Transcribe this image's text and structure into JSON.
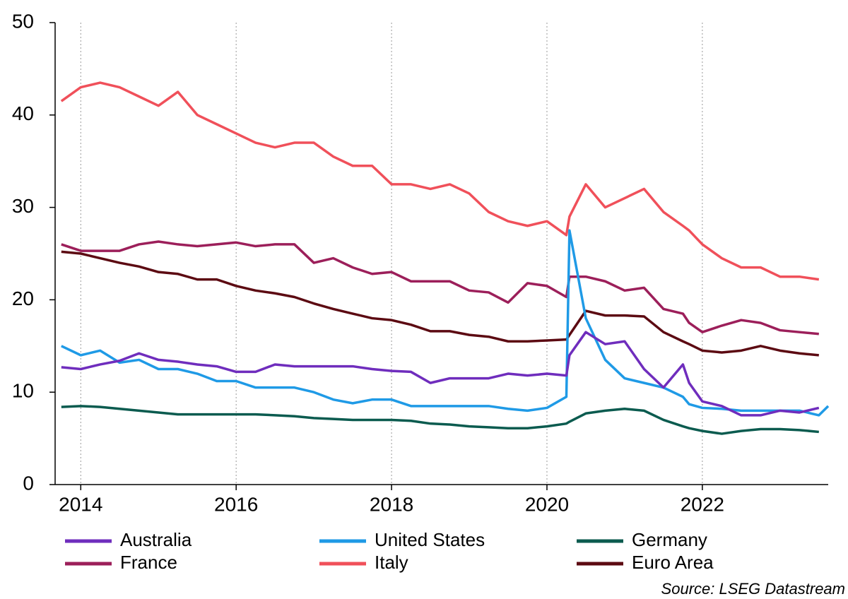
{
  "chart_data": {
    "type": "line",
    "x": [
      2013.75,
      2014,
      2014.25,
      2014.5,
      2014.75,
      2015,
      2015.25,
      2015.5,
      2015.75,
      2016,
      2016.25,
      2016.5,
      2016.75,
      2017,
      2017.25,
      2017.5,
      2017.75,
      2018,
      2018.25,
      2018.5,
      2018.75,
      2019,
      2019.25,
      2019.5,
      2019.75,
      2020,
      2020.25,
      2020.29,
      2020.5,
      2020.75,
      2021,
      2021.25,
      2021.5,
      2021.75,
      2021.83,
      2022,
      2022.25,
      2022.5,
      2022.75,
      2023,
      2023.25,
      2023.5,
      2023.62
    ],
    "series": [
      {
        "name": "Australia",
        "color": "#6f2dbd",
        "values": [
          12.7,
          12.5,
          13,
          13.4,
          14.2,
          13.5,
          13.3,
          13,
          12.8,
          12.2,
          12.2,
          13,
          12.8,
          12.8,
          12.8,
          12.8,
          12.5,
          12.3,
          12.2,
          11,
          11.5,
          11.5,
          11.5,
          12,
          11.8,
          12,
          11.8,
          14,
          16.5,
          15.2,
          15.5,
          12.5,
          10.5,
          13,
          11,
          9,
          8.5,
          7.5,
          7.5,
          8,
          7.8,
          8.3,
          null
        ]
      },
      {
        "name": "United States",
        "color": "#1f9ae6",
        "values": [
          15,
          14,
          14.5,
          13.2,
          13.5,
          12.5,
          12.5,
          12,
          11.2,
          11.2,
          10.5,
          10.5,
          10.5,
          10,
          9.2,
          8.8,
          9.2,
          9.2,
          8.5,
          8.5,
          8.5,
          8.5,
          8.5,
          8.2,
          8,
          8.3,
          9.5,
          27.5,
          18,
          13.5,
          11.5,
          11,
          10.5,
          9.5,
          8.7,
          8.3,
          8.2,
          8,
          8,
          8,
          8,
          7.5,
          8.5
        ]
      },
      {
        "name": "Germany",
        "color": "#0b5b4f",
        "values": [
          8.4,
          8.5,
          8.4,
          8.2,
          8,
          7.8,
          7.6,
          7.6,
          7.6,
          7.6,
          7.6,
          7.5,
          7.4,
          7.2,
          7.1,
          7,
          7,
          7,
          6.9,
          6.6,
          6.5,
          6.3,
          6.2,
          6.1,
          6.1,
          6.3,
          6.6,
          6.8,
          7.7,
          8,
          8.2,
          8,
          7,
          6.3,
          6.1,
          5.8,
          5.5,
          5.8,
          6,
          6,
          5.9,
          5.7,
          null
        ]
      },
      {
        "name": "France",
        "color": "#9c1f5a",
        "values": [
          26,
          25.3,
          25.3,
          25.3,
          26,
          26.3,
          26,
          25.8,
          26,
          26.2,
          25.8,
          26,
          26,
          24,
          24.5,
          23.5,
          22.8,
          23,
          22,
          22,
          22,
          21,
          20.8,
          19.7,
          21.8,
          21.5,
          20.3,
          22.5,
          22.5,
          22,
          21,
          21.3,
          19,
          18.5,
          17.5,
          16.5,
          17.2,
          17.8,
          17.5,
          16.7,
          16.5,
          16.3,
          null
        ]
      },
      {
        "name": "Italy",
        "color": "#f0505a",
        "values": [
          41.5,
          43,
          43.5,
          43,
          42,
          41,
          42.5,
          40,
          39,
          38,
          37,
          36.5,
          37,
          37,
          35.5,
          34.5,
          34.5,
          32.5,
          32.5,
          32,
          32.5,
          31.5,
          29.5,
          28.5,
          28,
          28.5,
          27,
          29,
          32.5,
          30,
          31,
          32,
          29.5,
          28,
          27.5,
          26,
          24.5,
          23.5,
          23.5,
          22.5,
          22.5,
          22.2,
          null
        ]
      },
      {
        "name": "Euro Area",
        "color": "#5c0a12",
        "values": [
          25.2,
          25,
          24.5,
          24,
          23.6,
          23,
          22.8,
          22.2,
          22.2,
          21.5,
          21,
          20.7,
          20.3,
          19.6,
          19,
          18.5,
          18,
          17.8,
          17.3,
          16.6,
          16.6,
          16.2,
          16,
          15.5,
          15.5,
          15.6,
          15.7,
          16.2,
          18.8,
          18.3,
          18.3,
          18.2,
          16.5,
          15.5,
          15.2,
          14.5,
          14.3,
          14.5,
          15,
          14.5,
          14.2,
          14,
          null
        ]
      }
    ],
    "xlim": [
      2013.67,
      2023.62
    ],
    "xticks": [
      2014,
      2016,
      2018,
      2020,
      2022
    ],
    "ylim": [
      0,
      50
    ],
    "yticks": [
      0,
      10,
      20,
      30,
      40,
      50
    ],
    "grid": "x",
    "legend": "bottom",
    "source": "Source: LSEG Datastream"
  }
}
